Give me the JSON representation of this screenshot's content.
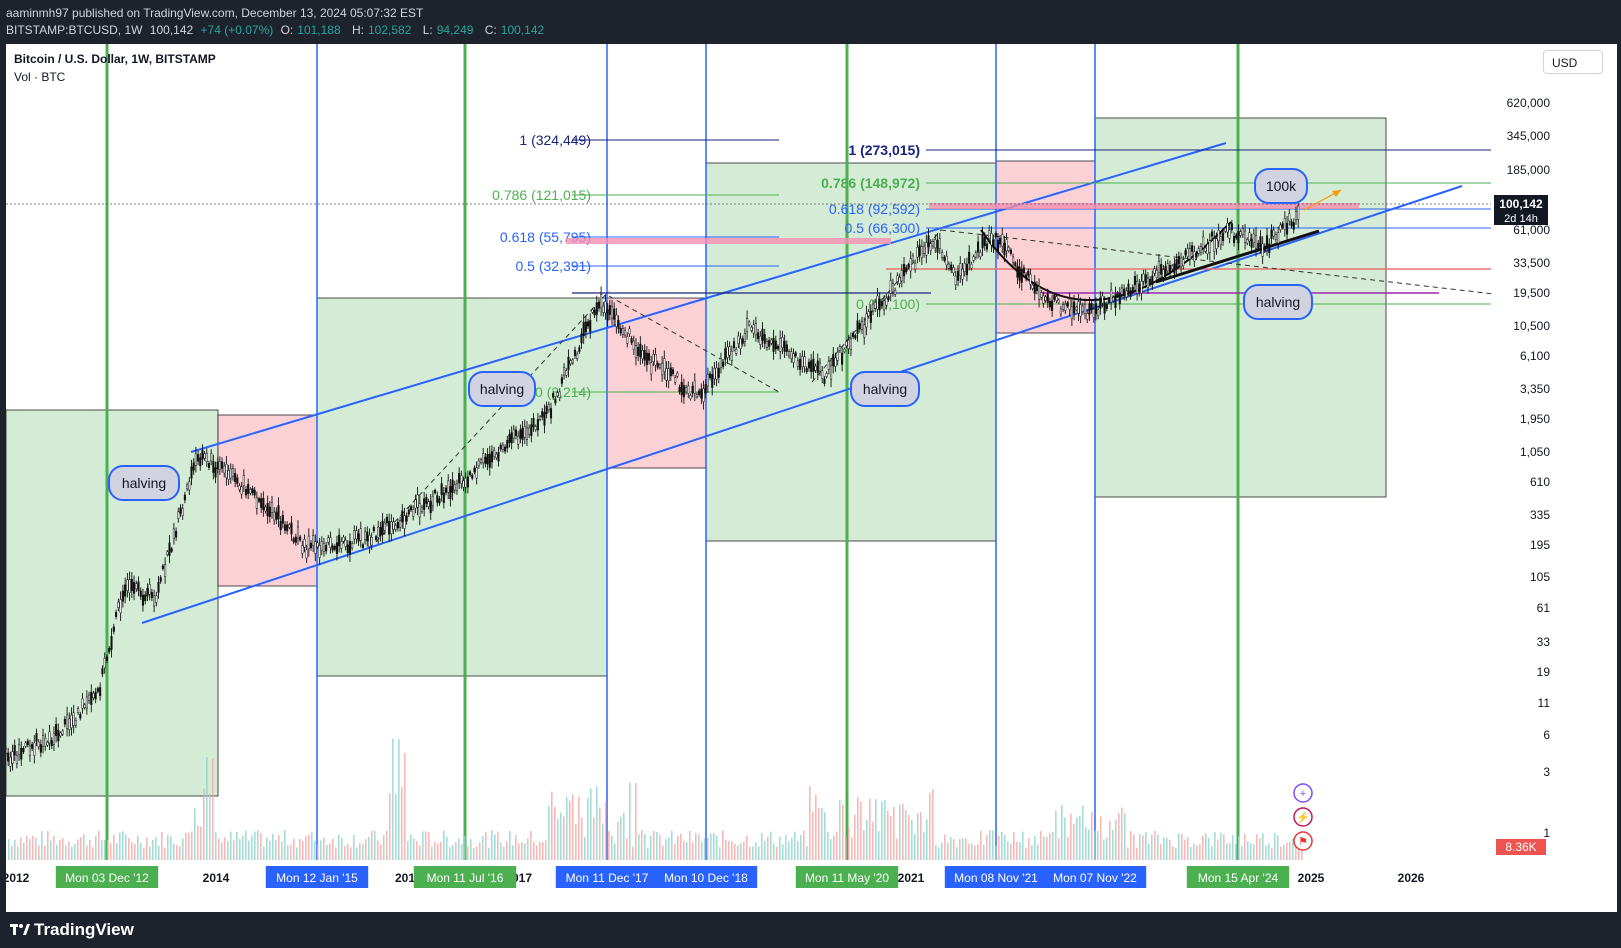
{
  "header": {
    "published": "aaminmh97 published on TradingView.com, December 13, 2024 05:07:32 EST",
    "symbol": "BITSTAMP:BTCUSD, 1W",
    "price": "100,142",
    "change": "+74 (+0.07%)",
    "o_label": "O:",
    "o_value": "101,188",
    "h_label": "H:",
    "h_value": "102,582",
    "l_label": "L:",
    "l_value": "94,249",
    "c_label": "C:",
    "c_value": "100,142"
  },
  "legend": {
    "title": "Bitcoin / U.S. Dollar, 1W, BITSTAMP",
    "volume": "Vol · BTC"
  },
  "currency": "USD",
  "footer": {
    "logo": "TradingView"
  },
  "colors": {
    "green_zone": "#d4ecd5",
    "red_zone": "#fbd1d6",
    "halving_line": "#4caf50",
    "blue_line": "#2962ff",
    "up": "#26a69a",
    "down": "#ef5350"
  },
  "chart_data": {
    "type": "candlestick",
    "y_scale": "log",
    "price_axis_ticks": [
      "620,000",
      "345,000",
      "185,000",
      "61,000",
      "33,500",
      "19,500",
      "10,500",
      "6,100",
      "3,350",
      "1,950",
      "1,050",
      "610",
      "335",
      "195",
      "105",
      "61",
      "33",
      "19",
      "11",
      "6",
      "3",
      "1"
    ],
    "last_price": "100,142",
    "countdown": "2d 14h",
    "volume_last": "8.36K",
    "year_labels": [
      "2012",
      "2014",
      "201",
      "017",
      "2021",
      "2025",
      "2026"
    ],
    "halving_dates": [
      "Mon 03 Dec '12",
      "Mon 11 Jul '16",
      "Mon 11 May '20",
      "Mon 15 Apr '24"
    ],
    "cycle_dates": [
      "Mon 12 Jan '15",
      "Mon 11 Dec '17",
      "Mon 10 Dec '18",
      "Mon 08 Nov '21",
      "Mon 07 Nov '22"
    ],
    "fib_set_1": [
      {
        "level": "1 (324,449)"
      },
      {
        "level": "0.786 (121,015)"
      },
      {
        "level": "0.618 (55,795)"
      },
      {
        "level": "0.5 (32,391)"
      },
      {
        "level": "0 (3,214)"
      }
    ],
    "fib_set_2": [
      {
        "level": "1 (273,015)"
      },
      {
        "level": "0.786 (148,972)"
      },
      {
        "level": "0.618 (92,592)"
      },
      {
        "level": "0.5 (66,300)"
      },
      {
        "level": "0 (16,100)"
      }
    ],
    "annotations": [
      "halving",
      "halving",
      "halving",
      "halving",
      "100k"
    ],
    "price_path": [
      {
        "t": "2012-01",
        "p": 4
      },
      {
        "t": "2012-07",
        "p": 6
      },
      {
        "t": "2012-12",
        "p": 13
      },
      {
        "t": "2013-03",
        "p": 90
      },
      {
        "t": "2013-07",
        "p": 80
      },
      {
        "t": "2013-12",
        "p": 1150
      },
      {
        "t": "2014-06",
        "p": 600
      },
      {
        "t": "2015-01",
        "p": 200
      },
      {
        "t": "2015-08",
        "p": 230
      },
      {
        "t": "2016-07",
        "p": 650
      },
      {
        "t": "2017-06",
        "p": 2500
      },
      {
        "t": "2017-12",
        "p": 19500
      },
      {
        "t": "2018-06",
        "p": 6500
      },
      {
        "t": "2018-12",
        "p": 3300
      },
      {
        "t": "2019-06",
        "p": 12000
      },
      {
        "t": "2020-03",
        "p": 5000
      },
      {
        "t": "2020-12",
        "p": 29000
      },
      {
        "t": "2021-04",
        "p": 63000
      },
      {
        "t": "2021-07",
        "p": 30000
      },
      {
        "t": "2021-11",
        "p": 68000
      },
      {
        "t": "2022-06",
        "p": 19000
      },
      {
        "t": "2022-11",
        "p": 16000
      },
      {
        "t": "2023-06",
        "p": 30000
      },
      {
        "t": "2024-03",
        "p": 72000
      },
      {
        "t": "2024-08",
        "p": 56000
      },
      {
        "t": "2024-12",
        "p": 100142
      }
    ]
  }
}
